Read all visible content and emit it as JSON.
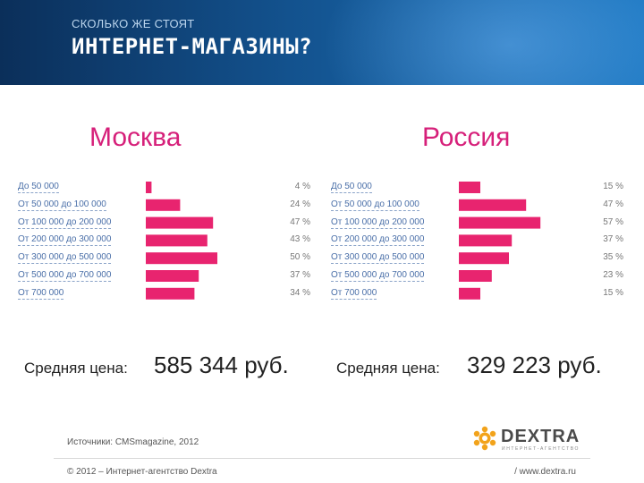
{
  "header": {
    "subtitle": "СКОЛЬКО ЖЕ СТОЯТ",
    "title": "ИНТЕРНЕТ-МАГАЗИНЫ?"
  },
  "colors": {
    "bar": "#e8246f",
    "accent": "#d6207a",
    "header_dark": "#0b2f5a"
  },
  "moscow": {
    "title": "Москва",
    "avg_label": "Средняя цена:",
    "avg_value": "585 344 руб."
  },
  "russia": {
    "title": "Россия",
    "avg_label": "Средняя цена:",
    "avg_value": "329 223 руб."
  },
  "chart_data": [
    {
      "type": "bar",
      "orientation": "horizontal",
      "title": "Москва",
      "categories": [
        "До 50 000",
        "От 50 000 до 100 000",
        "От 100 000 до 200 000",
        "От 200 000 до 300 000",
        "От 300 000 до 500 000",
        "От 500 000 до 700 000",
        "От 700 000"
      ],
      "values": [
        4,
        24,
        47,
        43,
        50,
        37,
        34
      ],
      "value_labels": [
        "4 %",
        "24 %",
        "47 %",
        "43 %",
        "50 %",
        "37 %",
        "34 %"
      ],
      "xlim": [
        0,
        100
      ]
    },
    {
      "type": "bar",
      "orientation": "horizontal",
      "title": "Россия",
      "categories": [
        "До 50 000",
        "От 50 000 до 100 000",
        "От 100 000 до 200 000",
        "От 200 000 до 300 000",
        "От 300 000 до 500 000",
        "От 500 000 до 700 000",
        "От 700 000"
      ],
      "values": [
        15,
        47,
        57,
        37,
        35,
        23,
        15
      ],
      "value_labels": [
        "15 %",
        "47 %",
        "57 %",
        "37 %",
        "35 %",
        "23 %",
        "15 %"
      ],
      "xlim": [
        0,
        100
      ]
    }
  ],
  "footer": {
    "sources": "Источники: CMSmagazine, 2012",
    "copyright": "© 2012 – Интернет-агентство Dextra",
    "site": "/ www.dextra.ru"
  },
  "logo": {
    "word": "DEXTRA",
    "tagline": "ИНТЕРНЕТ-АГЕНТСТВО",
    "icon": "gear-logo-icon"
  }
}
